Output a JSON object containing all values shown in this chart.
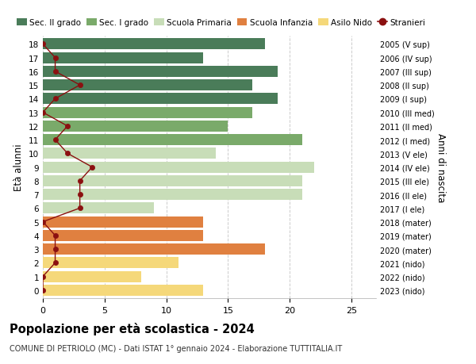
{
  "ages": [
    18,
    17,
    16,
    15,
    14,
    13,
    12,
    11,
    10,
    9,
    8,
    7,
    6,
    5,
    4,
    3,
    2,
    1,
    0
  ],
  "right_labels": [
    "2005 (V sup)",
    "2006 (IV sup)",
    "2007 (III sup)",
    "2008 (II sup)",
    "2009 (I sup)",
    "2010 (III med)",
    "2011 (II med)",
    "2012 (I med)",
    "2013 (V ele)",
    "2014 (IV ele)",
    "2015 (III ele)",
    "2016 (II ele)",
    "2017 (I ele)",
    "2018 (mater)",
    "2019 (mater)",
    "2020 (mater)",
    "2021 (nido)",
    "2022 (nido)",
    "2023 (nido)"
  ],
  "bar_values": [
    18,
    13,
    19,
    17,
    19,
    17,
    15,
    21,
    14,
    22,
    21,
    21,
    9,
    13,
    13,
    18,
    11,
    8,
    13
  ],
  "stranieri": [
    0,
    1,
    1,
    3,
    1,
    0,
    2,
    1,
    2,
    4,
    3,
    3,
    3,
    0,
    1,
    1,
    1,
    0,
    0
  ],
  "bar_colors": [
    "#4a7c59",
    "#4a7c59",
    "#4a7c59",
    "#4a7c59",
    "#4a7c59",
    "#7aaa6a",
    "#7aaa6a",
    "#7aaa6a",
    "#c8ddb8",
    "#c8ddb8",
    "#c8ddb8",
    "#c8ddb8",
    "#c8ddb8",
    "#e08040",
    "#e08040",
    "#e08040",
    "#f5d87a",
    "#f5d87a",
    "#f5d87a"
  ],
  "legend_labels": [
    "Sec. II grado",
    "Sec. I grado",
    "Scuola Primaria",
    "Scuola Infanzia",
    "Asilo Nido",
    "Stranieri"
  ],
  "legend_colors": [
    "#4a7c59",
    "#7aaa6a",
    "#c8ddb8",
    "#e08040",
    "#f5d87a",
    "#8b1010"
  ],
  "title": "Popolazione per età scolastica - 2024",
  "subtitle": "COMUNE DI PETRIOLO (MC) - Dati ISTAT 1° gennaio 2024 - Elaborazione TUTTITALIA.IT",
  "ylabel": "Età alunni",
  "right_ylabel": "Anni di nascita",
  "xlim": [
    0,
    27
  ],
  "xticks": [
    0,
    5,
    10,
    15,
    20,
    25
  ],
  "background_color": "#ffffff",
  "grid_color": "#cccccc",
  "bar_height": 0.82
}
